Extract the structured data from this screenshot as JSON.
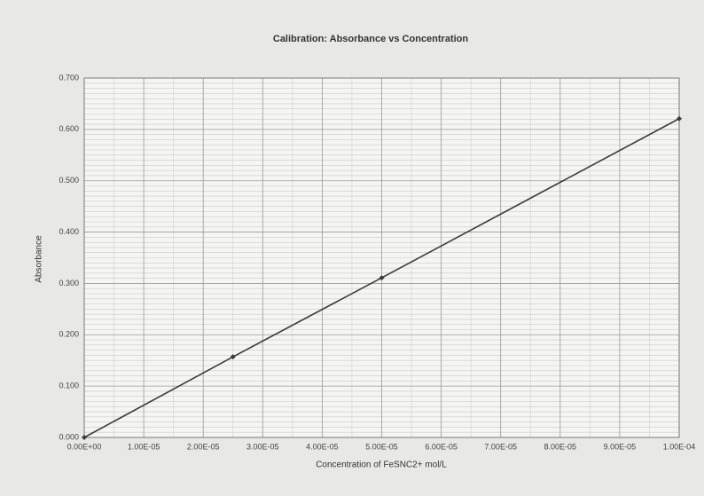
{
  "chart_data": {
    "type": "line",
    "title": "Calibration: Absorbance vs Concentration",
    "x_label": "Concentration of FeSNC2+ mol/L",
    "y_label": "Absorbance",
    "x": [
      0,
      2.5e-05,
      5e-05,
      0.0001
    ],
    "series": [
      {
        "name": "Absorbance",
        "color": "#3a3a3a",
        "values": [
          0,
          0.157,
          0.311,
          0.621
        ]
      }
    ],
    "xlim": [
      0,
      0.0001
    ],
    "xticks": [
      {
        "value": 0,
        "label": "0.00E+00"
      },
      {
        "value": 1e-05,
        "label": "1.00E-05"
      },
      {
        "value": 2e-05,
        "label": "2.00E-05"
      },
      {
        "value": 3e-05,
        "label": "3.00E-05"
      },
      {
        "value": 4e-05,
        "label": "4.00E-05"
      },
      {
        "value": 5e-05,
        "label": "5.00E-05"
      },
      {
        "value": 6e-05,
        "label": "6.00E-05"
      },
      {
        "value": 7e-05,
        "label": "7.00E-05"
      },
      {
        "value": 8e-05,
        "label": "8.00E-05"
      },
      {
        "value": 9e-05,
        "label": "9.00E-05"
      },
      {
        "value": 0.0001,
        "label": "1.00E-04"
      }
    ],
    "ylim": [
      0,
      0.7
    ],
    "yticks": [
      {
        "value": 0,
        "label": "0.000"
      },
      {
        "value": 0.1,
        "label": "0.100"
      },
      {
        "value": 0.2,
        "label": "0.200"
      },
      {
        "value": 0.3,
        "label": "0.300"
      },
      {
        "value": 0.4,
        "label": "0.400"
      },
      {
        "value": 0.5,
        "label": "0.500"
      },
      {
        "value": 0.6,
        "label": "0.600"
      },
      {
        "value": 0.7,
        "label": "0.700"
      }
    ],
    "grid": true,
    "minor_grid": true,
    "legend": false
  }
}
